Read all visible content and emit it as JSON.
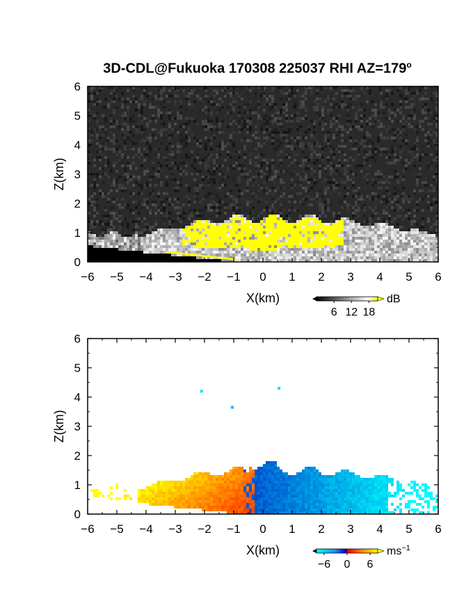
{
  "title": "3D-CDL@Fukuoka 170308 225037 RHI AZ=179",
  "title_sup": "o",
  "chart_data": [
    {
      "type": "heatmap",
      "panel": "top",
      "quantity": "backscatter intensity",
      "xlabel": "X(km)",
      "ylabel": "Z(km)",
      "xlim": [
        -6,
        6
      ],
      "ylim": [
        0,
        6
      ],
      "xticks": [
        "-6",
        "-5",
        "-4",
        "-3",
        "-2",
        "-1",
        "0",
        "1",
        "2",
        "3",
        "4",
        "5",
        "6"
      ],
      "yticks": [
        "0",
        "1",
        "2",
        "3",
        "4",
        "5",
        "6"
      ],
      "colorbar": {
        "unit": "dB",
        "ticks": [
          "6",
          "12",
          "18"
        ],
        "range": [
          0,
          21
        ],
        "colors": [
          "#000000",
          "#ffffff",
          "#ffff00"
        ]
      },
      "background_noise_color": "#2a2a2a",
      "echo_region": {
        "x_extent": [
          -6,
          6
        ],
        "z_max_approx": 1.7,
        "strong_echo_x": [
          -3,
          2.7
        ],
        "strong_echo_z": [
          0.3,
          1.7
        ]
      }
    },
    {
      "type": "heatmap",
      "panel": "bottom",
      "quantity": "Doppler velocity",
      "xlabel": "X(km)",
      "ylabel": "Z(km)",
      "xlim": [
        -6,
        6
      ],
      "ylim": [
        0,
        6
      ],
      "xticks": [
        "-6",
        "-5",
        "-4",
        "-3",
        "-2",
        "-1",
        "0",
        "1",
        "2",
        "3",
        "4",
        "5",
        "6"
      ],
      "yticks": [
        "0",
        "1",
        "2",
        "3",
        "4",
        "5",
        "6"
      ],
      "colorbar": {
        "unit": "ms",
        "unit_sup": "-1",
        "ticks": [
          "-6",
          "0",
          "6"
        ],
        "range": [
          -8,
          8
        ],
        "colors": [
          "#00ffff",
          "#1e90ff",
          "#0000c0",
          "#ff0000",
          "#ff8c00",
          "#ffff00"
        ]
      },
      "echo_region": {
        "x_extent": [
          -6,
          6
        ],
        "z_max_approx": 1.8,
        "positive_side_x": [
          -6,
          -0.3
        ],
        "negative_side_x": [
          -0.3,
          6
        ]
      },
      "isolated_points": [
        {
          "x": -2.1,
          "z": 4.2
        },
        {
          "x": -1.05,
          "z": 3.65
        },
        {
          "x": 0.55,
          "z": 4.3
        }
      ]
    }
  ]
}
